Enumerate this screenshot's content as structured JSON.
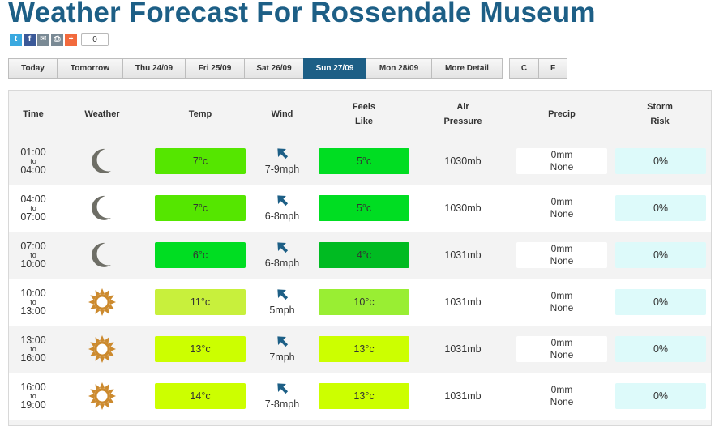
{
  "page": {
    "title": "Weather Forecast For Rossendale Museum"
  },
  "share": {
    "count": "0",
    "buttons": [
      {
        "name": "twitter-share-button",
        "icon": "twitter-icon",
        "glyph": "t",
        "color": "#3aa9e0"
      },
      {
        "name": "facebook-share-button",
        "icon": "facebook-icon",
        "glyph": "f",
        "color": "#3b5998"
      },
      {
        "name": "email-share-button",
        "icon": "email-icon",
        "glyph": "✉",
        "color": "#7a8a95"
      },
      {
        "name": "print-share-button",
        "icon": "print-icon",
        "glyph": "⎙",
        "color": "#7a8a95"
      },
      {
        "name": "more-share-button",
        "icon": "plus-icon",
        "glyph": "+",
        "color": "#f26a3d"
      }
    ]
  },
  "tabs": [
    {
      "label": "Today",
      "active": false
    },
    {
      "label": "Tomorrow",
      "active": false
    },
    {
      "label": "Thu 24/09",
      "active": false
    },
    {
      "label": "Fri 25/09",
      "active": false
    },
    {
      "label": "Sat 26/09",
      "active": false
    },
    {
      "label": "Sun 27/09",
      "active": true
    },
    {
      "label": "Mon 28/09",
      "active": false
    },
    {
      "label": "More Detail",
      "active": false
    }
  ],
  "units": [
    "C",
    "F"
  ],
  "table": {
    "headers": {
      "time": "Time",
      "weather": "Weather",
      "temp": "Temp",
      "wind": "Wind",
      "feels_1": "Feels",
      "feels_2": "Like",
      "air_1": "Air",
      "air_2": "Pressure",
      "precip": "Precip",
      "storm_1": "Storm",
      "storm_2": "Risk"
    },
    "rows": [
      {
        "from": "01:00",
        "to_word": "to",
        "to": "04:00",
        "icon": "moon-icon",
        "temp": "7°c",
        "temp_color": "#55e600",
        "wind": "7-9mph",
        "feels": "5°c",
        "feels_color": "#00dd22",
        "pressure": "1030mb",
        "precip_amount": "0mm",
        "precip_type": "None",
        "storm": "0%"
      },
      {
        "from": "04:00",
        "to_word": "to",
        "to": "07:00",
        "icon": "moon-icon",
        "temp": "7°c",
        "temp_color": "#55e600",
        "wind": "6-8mph",
        "feels": "5°c",
        "feels_color": "#00dd22",
        "pressure": "1030mb",
        "precip_amount": "0mm",
        "precip_type": "None",
        "storm": "0%"
      },
      {
        "from": "07:00",
        "to_word": "to",
        "to": "10:00",
        "icon": "moon-icon",
        "temp": "6°c",
        "temp_color": "#00dd22",
        "wind": "6-8mph",
        "feels": "4°c",
        "feels_color": "#00bb22",
        "pressure": "1031mb",
        "precip_amount": "0mm",
        "precip_type": "None",
        "storm": "0%"
      },
      {
        "from": "10:00",
        "to_word": "to",
        "to": "13:00",
        "icon": "sun-icon",
        "temp": "11°c",
        "temp_color": "#c8f03c",
        "wind": "5mph",
        "feels": "10°c",
        "feels_color": "#99ee33",
        "pressure": "1031mb",
        "precip_amount": "0mm",
        "precip_type": "None",
        "storm": "0%"
      },
      {
        "from": "13:00",
        "to_word": "to",
        "to": "16:00",
        "icon": "sun-icon",
        "temp": "13°c",
        "temp_color": "#ccff00",
        "wind": "7mph",
        "feels": "13°c",
        "feels_color": "#ccff00",
        "pressure": "1031mb",
        "precip_amount": "0mm",
        "precip_type": "None",
        "storm": "0%"
      },
      {
        "from": "16:00",
        "to_word": "to",
        "to": "19:00",
        "icon": "sun-icon",
        "temp": "14°c",
        "temp_color": "#ccff00",
        "wind": "7-8mph",
        "feels": "13°c",
        "feels_color": "#ccff00",
        "pressure": "1031mb",
        "precip_amount": "0mm",
        "precip_type": "None",
        "storm": "0%"
      }
    ]
  },
  "colors": {
    "brand": "#1d5f86",
    "storm_bg": "#ddfafa",
    "moon": "#6e6e66",
    "sun": "#cc8a2e",
    "wind_arrow": "#1d5f86"
  }
}
